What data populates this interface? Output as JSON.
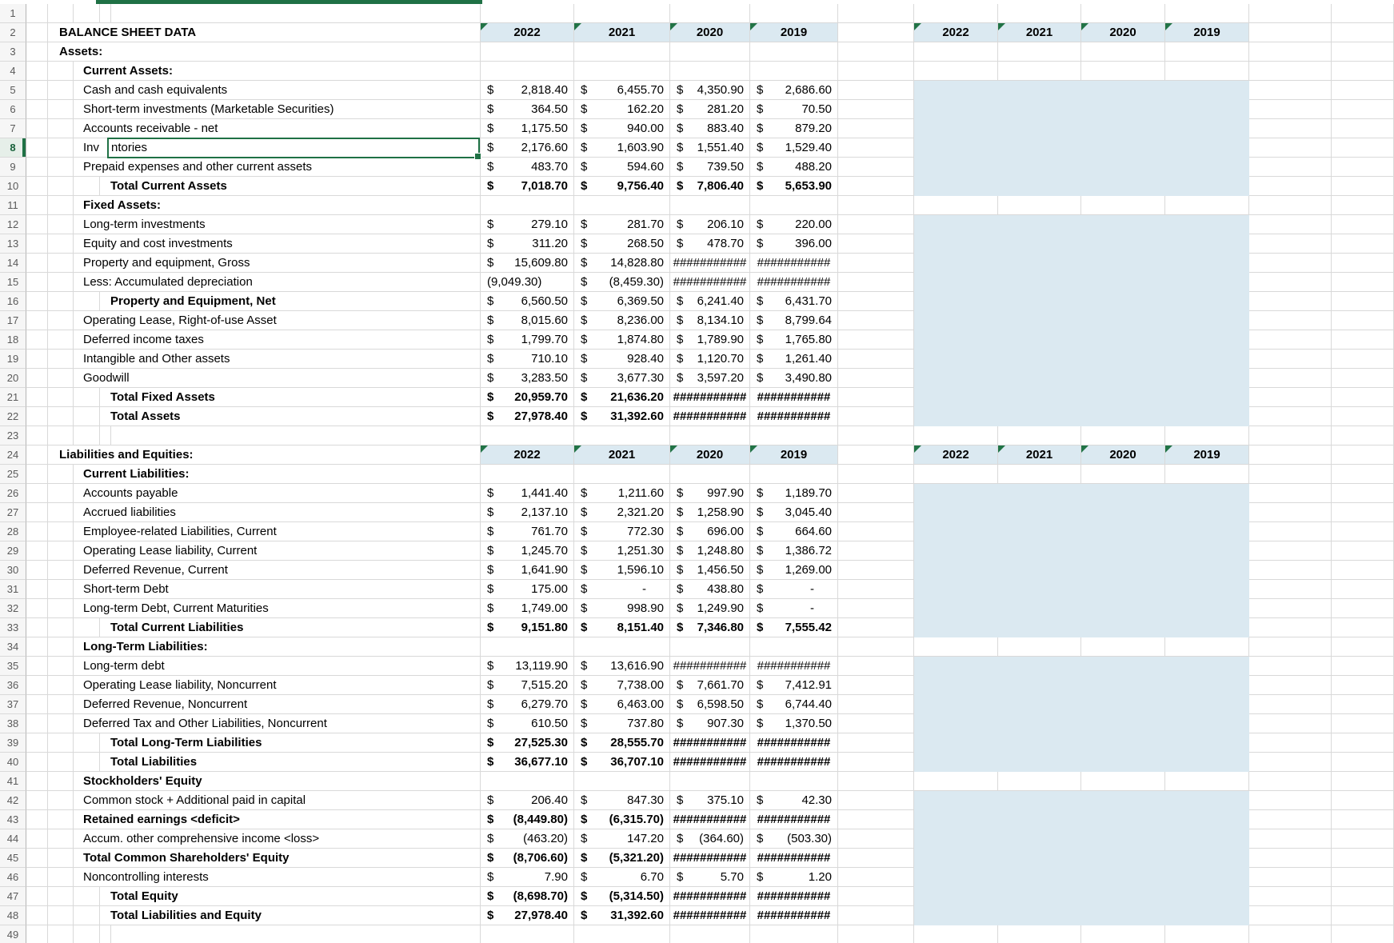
{
  "meta": {
    "hash_display": "###########"
  },
  "colors": {
    "selection_green": "#1f7145",
    "triangle_green": "#217346",
    "header_fill": "#dbe9f1",
    "band_fill": "#dbe9f1",
    "gridline": "#d9d9d9",
    "gutter_bg": "#f6f6f6",
    "gutter_text": "#5a5a5a",
    "selected_row_bg": "#e6efe9",
    "selected_row_text": "#17613a"
  },
  "header": {
    "years": [
      "2022",
      "2021",
      "2020",
      "2019"
    ]
  },
  "edit": {
    "before": "Inv",
    "after": "ntories"
  },
  "rows": [
    {
      "n": 1
    },
    {
      "n": 2,
      "label": "BALANCE SHEET DATA",
      "lvl": 1,
      "lb": true,
      "type": "years"
    },
    {
      "n": 3,
      "label": "Assets:",
      "lvl": 1,
      "lb": true
    },
    {
      "n": 4,
      "label": "Current Assets:",
      "lvl": 2,
      "lb": true
    },
    {
      "n": 5,
      "label": "Cash and cash equivalents",
      "lvl": 2,
      "shade": true,
      "cells": [
        {
          "s": "$",
          "v": "2,818.40"
        },
        {
          "s": "$",
          "v": "6,455.70"
        },
        {
          "s": "$",
          "v": "4,350.90"
        },
        {
          "s": "$",
          "v": "2,686.60"
        }
      ]
    },
    {
      "n": 6,
      "label": "Short-term investments (Marketable Securities)",
      "lvl": 2,
      "shade": true,
      "cells": [
        {
          "s": "$",
          "v": "364.50"
        },
        {
          "s": "$",
          "v": "162.20"
        },
        {
          "s": "$",
          "v": "281.20"
        },
        {
          "s": "$",
          "v": "70.50"
        }
      ]
    },
    {
      "n": 7,
      "label": "Accounts receivable - net",
      "lvl": 2,
      "shade": true,
      "cells": [
        {
          "s": "$",
          "v": "1,175.50"
        },
        {
          "s": "$",
          "v": "940.00"
        },
        {
          "s": "$",
          "v": "883.40"
        },
        {
          "s": "$",
          "v": "879.20"
        }
      ]
    },
    {
      "n": 8,
      "label": "Inventories",
      "lvl": 2,
      "shade": true,
      "edit": true,
      "cells": [
        {
          "s": "$",
          "v": "2,176.60"
        },
        {
          "s": "$",
          "v": "1,603.90"
        },
        {
          "s": "$",
          "v": "1,551.40"
        },
        {
          "s": "$",
          "v": "1,529.40"
        }
      ]
    },
    {
      "n": 9,
      "label": "Prepaid expenses and other current assets",
      "lvl": 2,
      "shade": true,
      "cells": [
        {
          "s": "$",
          "v": "483.70"
        },
        {
          "s": "$",
          "v": "594.60"
        },
        {
          "s": "$",
          "v": "739.50"
        },
        {
          "s": "$",
          "v": "488.20"
        }
      ]
    },
    {
      "n": 10,
      "label": "Total Current Assets",
      "lvl": 3,
      "lb": true,
      "vb": true,
      "shade": true,
      "cells": [
        {
          "s": "$",
          "v": "7,018.70"
        },
        {
          "s": "$",
          "v": "9,756.40"
        },
        {
          "s": "$",
          "v": "7,806.40"
        },
        {
          "s": "$",
          "v": "5,653.90"
        }
      ]
    },
    {
      "n": 11,
      "label": "Fixed Assets:",
      "lvl": 2,
      "lb": true
    },
    {
      "n": 12,
      "label": "Long-term investments",
      "lvl": 2,
      "shade": true,
      "cells": [
        {
          "s": "$",
          "v": "279.10"
        },
        {
          "s": "$",
          "v": "281.70"
        },
        {
          "s": "$",
          "v": "206.10"
        },
        {
          "s": "$",
          "v": "220.00"
        }
      ]
    },
    {
      "n": 13,
      "label": "Equity and cost investments",
      "lvl": 2,
      "shade": true,
      "cells": [
        {
          "s": "$",
          "v": "311.20"
        },
        {
          "s": "$",
          "v": "268.50"
        },
        {
          "s": "$",
          "v": "478.70"
        },
        {
          "s": "$",
          "v": "396.00"
        }
      ]
    },
    {
      "n": 14,
      "label": "Property and equipment, Gross",
      "lvl": 2,
      "shade": true,
      "cells": [
        {
          "s": "$",
          "v": "15,609.80"
        },
        {
          "s": "$",
          "v": "14,828.80"
        },
        {
          "h": true
        },
        {
          "h": true
        }
      ]
    },
    {
      "n": 15,
      "label": "Less: Accumulated depreciation",
      "lvl": 2,
      "shade": true,
      "cells": [
        {
          "v": "(9,049.30)"
        },
        {
          "s": "$",
          "v": "(8,459.30)"
        },
        {
          "h": true
        },
        {
          "h": true
        }
      ]
    },
    {
      "n": 16,
      "label": "Property and Equipment, Net",
      "lvl": 3,
      "lb": true,
      "shade": true,
      "cells": [
        {
          "s": "$",
          "v": "6,560.50"
        },
        {
          "s": "$",
          "v": "6,369.50"
        },
        {
          "s": "$",
          "v": "6,241.40"
        },
        {
          "s": "$",
          "v": "6,431.70"
        }
      ]
    },
    {
      "n": 17,
      "label": "Operating Lease, Right-of-use Asset",
      "lvl": 2,
      "shade": true,
      "cells": [
        {
          "s": "$",
          "v": "8,015.60"
        },
        {
          "s": "$",
          "v": "8,236.00"
        },
        {
          "s": "$",
          "v": "8,134.10"
        },
        {
          "s": "$",
          "v": "8,799.64"
        }
      ]
    },
    {
      "n": 18,
      "label": "Deferred income taxes",
      "lvl": 2,
      "shade": true,
      "cells": [
        {
          "s": "$",
          "v": "1,799.70"
        },
        {
          "s": "$",
          "v": "1,874.80"
        },
        {
          "s": "$",
          "v": "1,789.90"
        },
        {
          "s": "$",
          "v": "1,765.80"
        }
      ]
    },
    {
      "n": 19,
      "label": "Intangible and Other assets",
      "lvl": 2,
      "shade": true,
      "cells": [
        {
          "s": "$",
          "v": "710.10"
        },
        {
          "s": "$",
          "v": "928.40"
        },
        {
          "s": "$",
          "v": "1,120.70"
        },
        {
          "s": "$",
          "v": "1,261.40"
        }
      ]
    },
    {
      "n": 20,
      "label": "Goodwill",
      "lvl": 2,
      "shade": true,
      "cells": [
        {
          "s": "$",
          "v": "3,283.50"
        },
        {
          "s": "$",
          "v": "3,677.30"
        },
        {
          "s": "$",
          "v": "3,597.20"
        },
        {
          "s": "$",
          "v": "3,490.80"
        }
      ]
    },
    {
      "n": 21,
      "label": "Total Fixed Assets",
      "lvl": 3,
      "lb": true,
      "vb": true,
      "shade": true,
      "cells": [
        {
          "s": "$",
          "v": "20,959.70"
        },
        {
          "s": "$",
          "v": "21,636.20"
        },
        {
          "h": true
        },
        {
          "h": true
        }
      ]
    },
    {
      "n": 22,
      "label": "Total Assets",
      "lvl": 3,
      "lb": true,
      "vb": true,
      "shade": true,
      "cells": [
        {
          "s": "$",
          "v": "27,978.40"
        },
        {
          "s": "$",
          "v": "31,392.60"
        },
        {
          "h": true
        },
        {
          "h": true
        }
      ]
    },
    {
      "n": 23
    },
    {
      "n": 24,
      "label": "Liabilities and Equities:",
      "lvl": 1,
      "lb": true,
      "type": "years"
    },
    {
      "n": 25,
      "label": "Current Liabilities:",
      "lvl": 2,
      "lb": true
    },
    {
      "n": 26,
      "label": "Accounts payable",
      "lvl": 2,
      "shade": true,
      "cells": [
        {
          "s": "$",
          "v": "1,441.40"
        },
        {
          "s": "$",
          "v": "1,211.60"
        },
        {
          "s": "$",
          "v": "997.90"
        },
        {
          "s": "$",
          "v": "1,189.70"
        }
      ]
    },
    {
      "n": 27,
      "label": "Accrued liabilities",
      "lvl": 2,
      "shade": true,
      "cells": [
        {
          "s": "$",
          "v": "2,137.10"
        },
        {
          "s": "$",
          "v": "2,321.20"
        },
        {
          "s": "$",
          "v": "1,258.90"
        },
        {
          "s": "$",
          "v": "3,045.40"
        }
      ]
    },
    {
      "n": 28,
      "label": "Employee-related Liabilities, Current",
      "lvl": 2,
      "shade": true,
      "cells": [
        {
          "s": "$",
          "v": "761.70"
        },
        {
          "s": "$",
          "v": "772.30"
        },
        {
          "s": "$",
          "v": "696.00"
        },
        {
          "s": "$",
          "v": "664.60"
        }
      ]
    },
    {
      "n": 29,
      "label": "Operating Lease liability, Current",
      "lvl": 2,
      "shade": true,
      "cells": [
        {
          "s": "$",
          "v": "1,245.70"
        },
        {
          "s": "$",
          "v": "1,251.30"
        },
        {
          "s": "$",
          "v": "1,248.80"
        },
        {
          "s": "$",
          "v": "1,386.72"
        }
      ]
    },
    {
      "n": 30,
      "label": "Deferred Revenue, Current",
      "lvl": 2,
      "shade": true,
      "cells": [
        {
          "s": "$",
          "v": "1,641.90"
        },
        {
          "s": "$",
          "v": "1,596.10"
        },
        {
          "s": "$",
          "v": "1,456.50"
        },
        {
          "s": "$",
          "v": "1,269.00"
        }
      ]
    },
    {
      "n": 31,
      "label": "Short-term Debt",
      "lvl": 2,
      "shade": true,
      "cells": [
        {
          "s": "$",
          "v": "175.00"
        },
        {
          "s": "$",
          "v": "-",
          "d": true
        },
        {
          "s": "$",
          "v": "438.80"
        },
        {
          "s": "$",
          "v": "-",
          "d": true
        }
      ]
    },
    {
      "n": 32,
      "label": "Long-term Debt, Current Maturities",
      "lvl": 2,
      "shade": true,
      "cells": [
        {
          "s": "$",
          "v": "1,749.00"
        },
        {
          "s": "$",
          "v": "998.90"
        },
        {
          "s": "$",
          "v": "1,249.90"
        },
        {
          "s": "$",
          "v": "-",
          "d": true
        }
      ]
    },
    {
      "n": 33,
      "label": "Total Current Liabilities",
      "lvl": 3,
      "lb": true,
      "vb": true,
      "shade": true,
      "cells": [
        {
          "s": "$",
          "v": "9,151.80"
        },
        {
          "s": "$",
          "v": "8,151.40"
        },
        {
          "s": "$",
          "v": "7,346.80"
        },
        {
          "s": "$",
          "v": "7,555.42"
        }
      ]
    },
    {
      "n": 34,
      "label": "Long-Term Liabilities:",
      "lvl": 2,
      "lb": true
    },
    {
      "n": 35,
      "label": "Long-term debt",
      "lvl": 2,
      "shade": true,
      "cells": [
        {
          "s": "$",
          "v": "13,119.90"
        },
        {
          "s": "$",
          "v": "13,616.90"
        },
        {
          "h": true
        },
        {
          "h": true
        }
      ]
    },
    {
      "n": 36,
      "label": "Operating Lease liability, Noncurrent",
      "lvl": 2,
      "shade": true,
      "cells": [
        {
          "s": "$",
          "v": "7,515.20"
        },
        {
          "s": "$",
          "v": "7,738.00"
        },
        {
          "s": "$",
          "v": "7,661.70"
        },
        {
          "s": "$",
          "v": "7,412.91"
        }
      ]
    },
    {
      "n": 37,
      "label": "Deferred Revenue, Noncurrent",
      "lvl": 2,
      "shade": true,
      "cells": [
        {
          "s": "$",
          "v": "6,279.70"
        },
        {
          "s": "$",
          "v": "6,463.00"
        },
        {
          "s": "$",
          "v": "6,598.50"
        },
        {
          "s": "$",
          "v": "6,744.40"
        }
      ]
    },
    {
      "n": 38,
      "label": "Deferred Tax and Other Liabilities, Noncurrent",
      "lvl": 2,
      "shade": true,
      "cells": [
        {
          "s": "$",
          "v": "610.50"
        },
        {
          "s": "$",
          "v": "737.80"
        },
        {
          "s": "$",
          "v": "907.30"
        },
        {
          "s": "$",
          "v": "1,370.50"
        }
      ]
    },
    {
      "n": 39,
      "label": "Total Long-Term Liabilities",
      "lvl": 3,
      "lb": true,
      "vb": true,
      "shade": true,
      "cells": [
        {
          "s": "$",
          "v": "27,525.30"
        },
        {
          "s": "$",
          "v": "28,555.70"
        },
        {
          "h": true
        },
        {
          "h": true
        }
      ]
    },
    {
      "n": 40,
      "label": "Total Liabilities",
      "lvl": 3,
      "lb": true,
      "vb": true,
      "shade": true,
      "cells": [
        {
          "s": "$",
          "v": "36,677.10"
        },
        {
          "s": "$",
          "v": "36,707.10"
        },
        {
          "h": true
        },
        {
          "h": true
        }
      ]
    },
    {
      "n": 41,
      "label": "Stockholders' Equity",
      "lvl": 2,
      "lb": true
    },
    {
      "n": 42,
      "label": "Common stock + Additional paid in capital",
      "lvl": 2,
      "shade": true,
      "cells": [
        {
          "s": "$",
          "v": "206.40"
        },
        {
          "s": "$",
          "v": "847.30"
        },
        {
          "s": "$",
          "v": "375.10"
        },
        {
          "s": "$",
          "v": "42.30"
        }
      ]
    },
    {
      "n": 43,
      "label": "Retained earnings <deficit>",
      "lvl": 2,
      "lb": true,
      "vb": true,
      "shade": true,
      "cells": [
        {
          "s": "$",
          "v": "(8,449.80)"
        },
        {
          "s": "$",
          "v": "(6,315.70)"
        },
        {
          "h": true
        },
        {
          "h": true
        }
      ]
    },
    {
      "n": 44,
      "label": "Accum. other comprehensive income <loss>",
      "lvl": 2,
      "shade": true,
      "cells": [
        {
          "s": "$",
          "v": "(463.20)"
        },
        {
          "s": "$",
          "v": "147.20"
        },
        {
          "s": "$",
          "v": "(364.60)"
        },
        {
          "s": "$",
          "v": "(503.30)"
        }
      ]
    },
    {
      "n": 45,
      "label": "Total Common Shareholders' Equity",
      "lvl": 2,
      "lb": true,
      "vb": true,
      "shade": true,
      "cells": [
        {
          "s": "$",
          "v": "(8,706.60)"
        },
        {
          "s": "$",
          "v": "(5,321.20)"
        },
        {
          "h": true
        },
        {
          "h": true
        }
      ]
    },
    {
      "n": 46,
      "label": "Noncontrolling interests",
      "lvl": 2,
      "shade": true,
      "cells": [
        {
          "s": "$",
          "v": "7.90"
        },
        {
          "s": "$",
          "v": "6.70"
        },
        {
          "s": "$",
          "v": "5.70"
        },
        {
          "s": "$",
          "v": "1.20"
        }
      ]
    },
    {
      "n": 47,
      "label": "Total Equity",
      "lvl": 3,
      "lb": true,
      "vb": true,
      "shade": true,
      "cells": [
        {
          "s": "$",
          "v": "(8,698.70)"
        },
        {
          "s": "$",
          "v": "(5,314.50)"
        },
        {
          "h": true
        },
        {
          "h": true
        }
      ]
    },
    {
      "n": 48,
      "label": "Total Liabilities and Equity",
      "lvl": 3,
      "lb": true,
      "vb": true,
      "shade": true,
      "cells": [
        {
          "s": "$",
          "v": "27,978.40"
        },
        {
          "s": "$",
          "v": "31,392.60"
        },
        {
          "h": true
        },
        {
          "h": true
        }
      ]
    },
    {
      "n": 49
    }
  ]
}
